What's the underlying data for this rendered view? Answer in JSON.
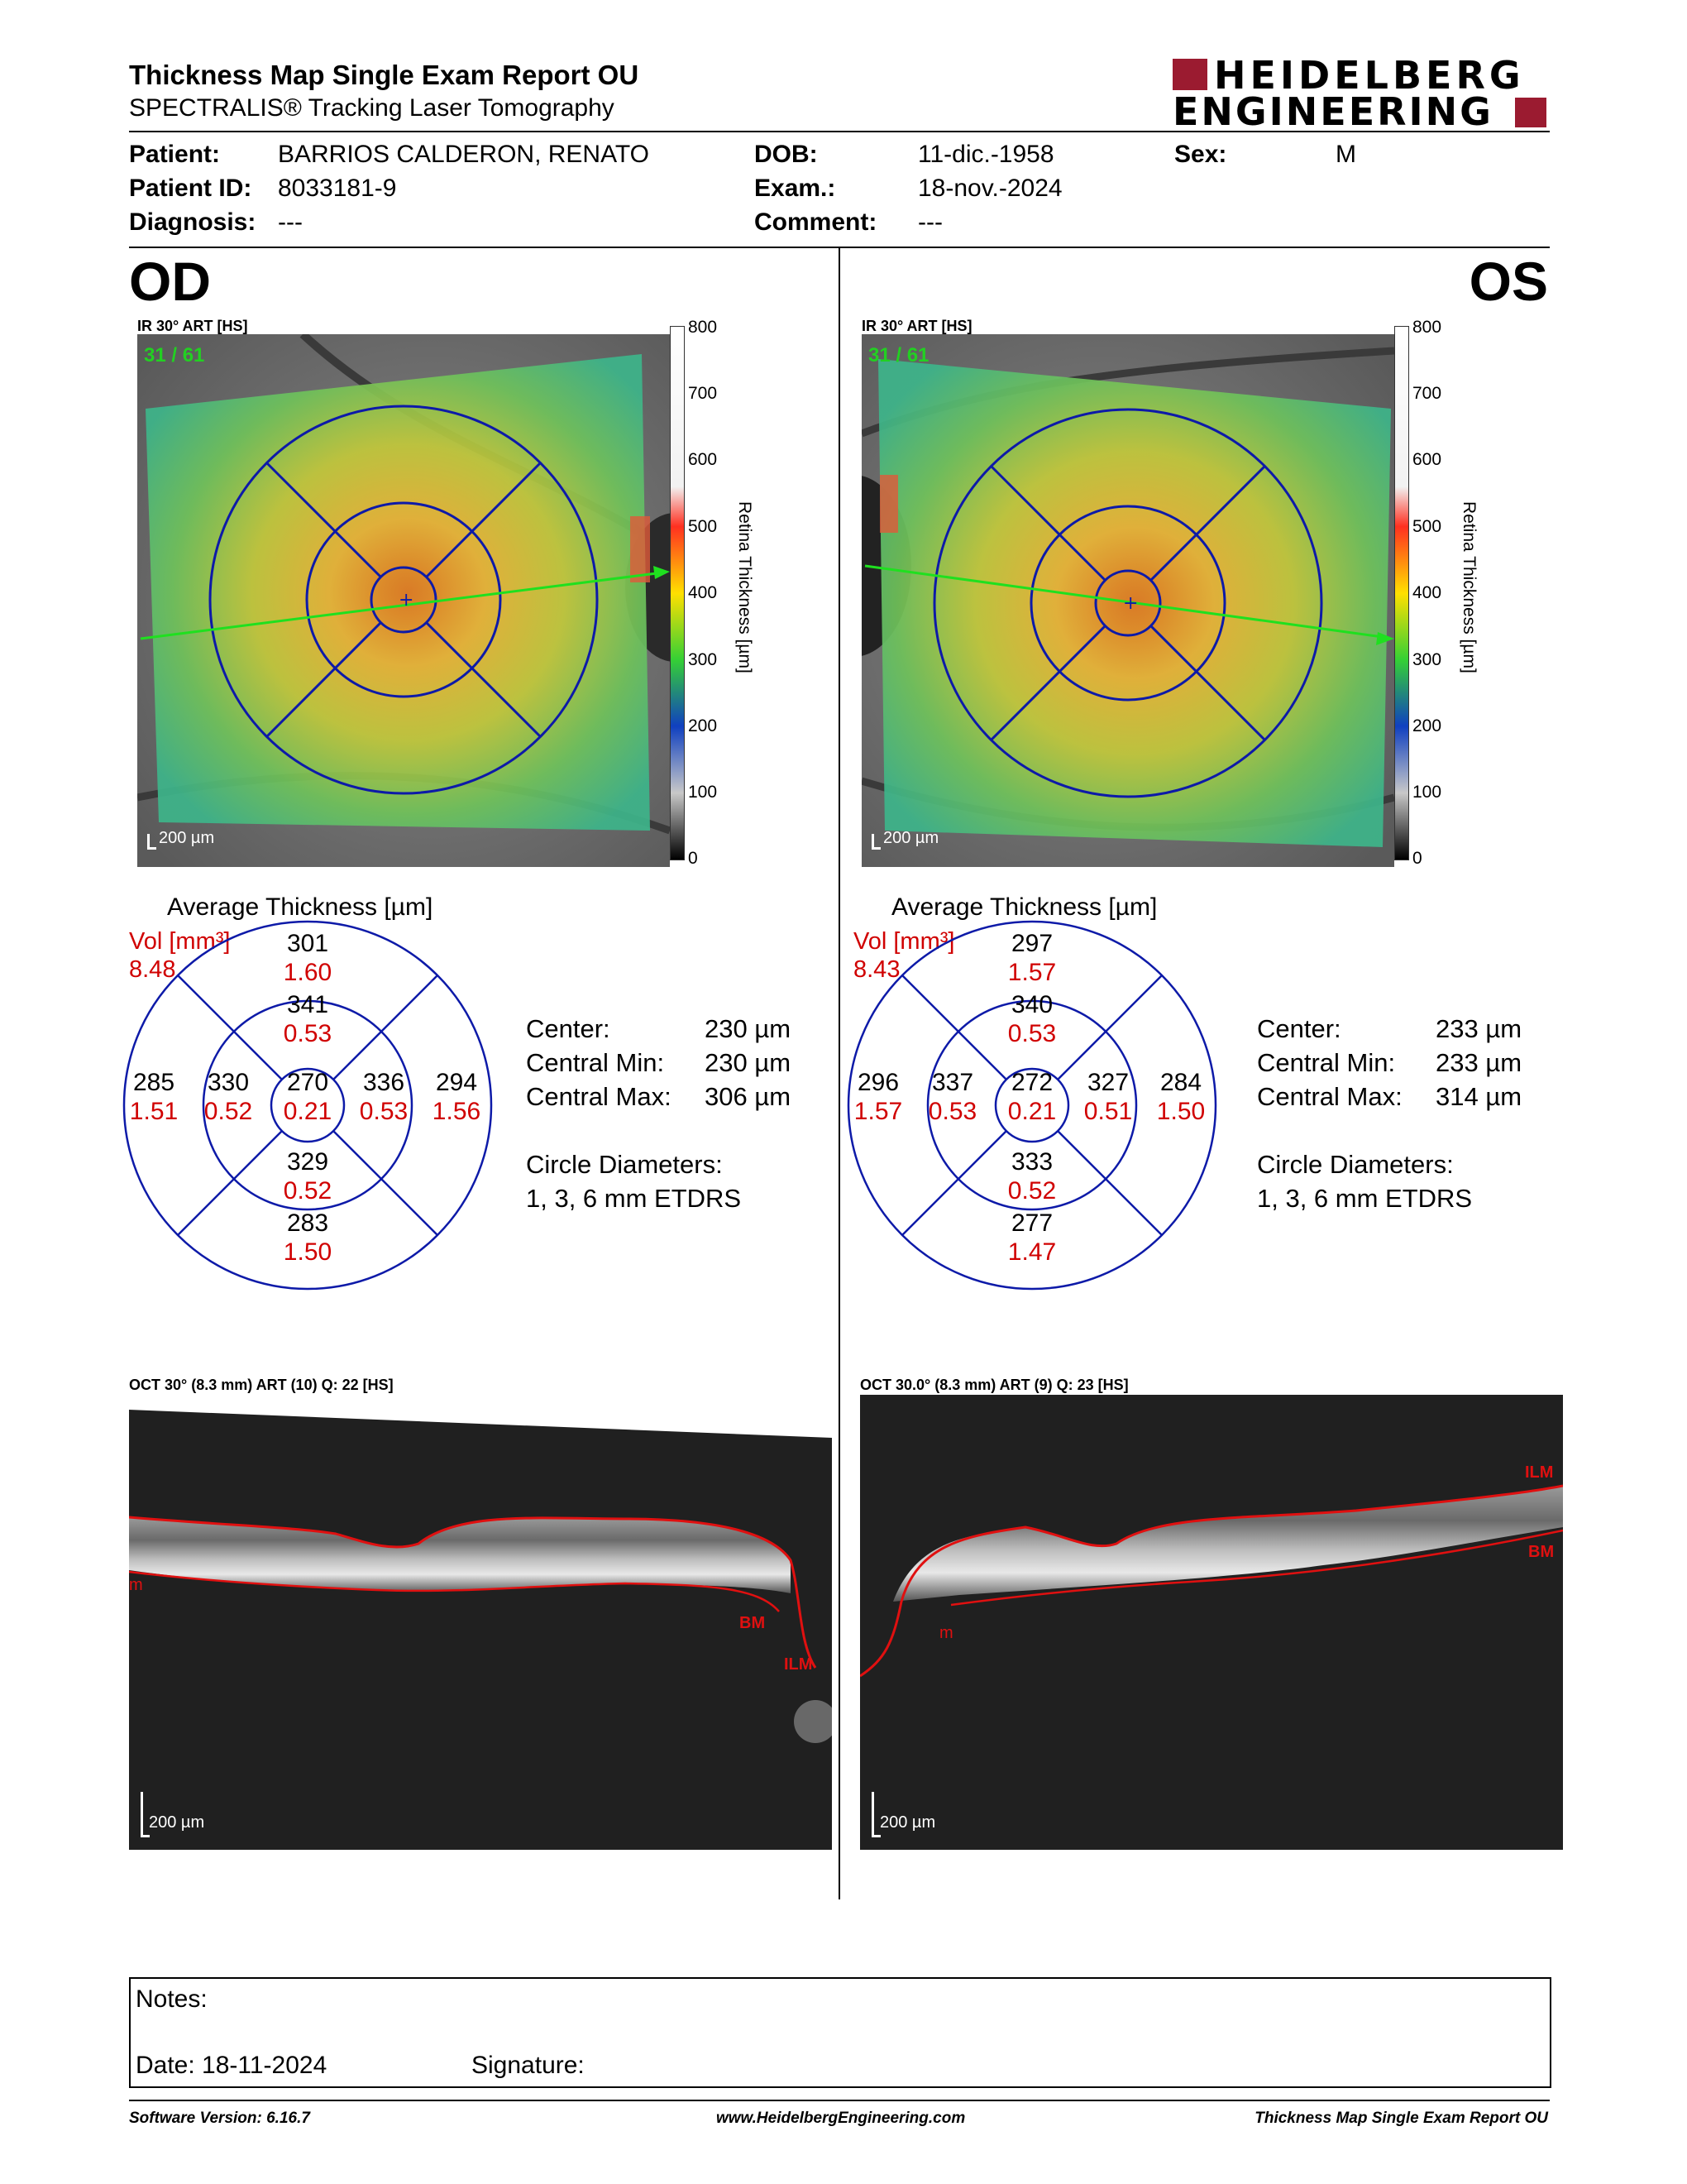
{
  "header": {
    "title": "Thickness Map Single Exam Report OU",
    "subtitle": "SPECTRALIS® Tracking Laser Tomography",
    "logo_line1": "HEIDELBERG",
    "logo_line2": "ENGINEERING",
    "logo_color": "#9b1b30"
  },
  "patient": {
    "patient_label": "Patient:",
    "patient_value": "BARRIOS CALDERON, RENATO",
    "id_label": "Patient ID:",
    "id_value": "8033181-9",
    "diagnosis_label": "Diagnosis:",
    "diagnosis_value": "---",
    "dob_label": "DOB:",
    "dob_value": "11-dic.-1958",
    "exam_label": "Exam.:",
    "exam_value": "18-nov.-2024",
    "comment_label": "Comment:",
    "comment_value": "---",
    "sex_label": "Sex:",
    "sex_value": "M"
  },
  "od": {
    "eye": "OD",
    "ir_label": "IR 30° ART [HS]",
    "frame": "31 / 61",
    "scale": "200 µm",
    "avg_title": "Average Thickness [µm]",
    "vol_label": "Vol [mm³]",
    "vol_value": "8.48",
    "sectors": {
      "outer_sup": {
        "t": "301",
        "v": "1.60"
      },
      "inner_sup": {
        "t": "341",
        "v": "0.53"
      },
      "outer_left": {
        "t": "285",
        "v": "1.51"
      },
      "inner_left": {
        "t": "330",
        "v": "0.52"
      },
      "center": {
        "t": "270",
        "v": "0.21"
      },
      "inner_right": {
        "t": "336",
        "v": "0.53"
      },
      "outer_right": {
        "t": "294",
        "v": "1.56"
      },
      "inner_inf": {
        "t": "329",
        "v": "0.52"
      },
      "outer_inf": {
        "t": "283",
        "v": "1.50"
      }
    },
    "stats": {
      "center_label": "Center:",
      "center_value": "230 µm",
      "min_label": "Central Min:",
      "min_value": "230 µm",
      "max_label": "Central Max:",
      "max_value": "306 µm",
      "diam_label": "Circle Diameters:",
      "diam_value": "1, 3, 6 mm ETDRS"
    },
    "oct_label": "OCT 30° (8.3 mm) ART (10) Q: 22 [HS]",
    "oct_scale": "200 µm",
    "layer_ilm": "ILM",
    "layer_bm": "BM",
    "layer_m": "m"
  },
  "os": {
    "eye": "OS",
    "ir_label": "IR 30° ART [HS]",
    "frame": "31 / 61",
    "scale": "200 µm",
    "avg_title": "Average Thickness [µm]",
    "vol_label": "Vol [mm³]",
    "vol_value": "8.43",
    "sectors": {
      "outer_sup": {
        "t": "297",
        "v": "1.57"
      },
      "inner_sup": {
        "t": "340",
        "v": "0.53"
      },
      "outer_left": {
        "t": "296",
        "v": "1.57"
      },
      "inner_left": {
        "t": "337",
        "v": "0.53"
      },
      "center": {
        "t": "272",
        "v": "0.21"
      },
      "inner_right": {
        "t": "327",
        "v": "0.51"
      },
      "outer_right": {
        "t": "284",
        "v": "1.50"
      },
      "inner_inf": {
        "t": "333",
        "v": "0.52"
      },
      "outer_inf": {
        "t": "277",
        "v": "1.47"
      }
    },
    "stats": {
      "center_label": "Center:",
      "center_value": "233 µm",
      "min_label": "Central Min:",
      "min_value": "233 µm",
      "max_label": "Central Max:",
      "max_value": "314 µm",
      "diam_label": "Circle Diameters:",
      "diam_value": "1, 3, 6 mm ETDRS"
    },
    "oct_label": "OCT 30.0° (8.3 mm) ART (9) Q: 23 [HS]",
    "oct_scale": "200 µm",
    "layer_ilm": "ILM",
    "layer_bm": "BM",
    "layer_m": "m"
  },
  "colorbar": {
    "title": "Retina Thickness [µm]",
    "ticks": [
      "800",
      "700",
      "600",
      "500",
      "400",
      "300",
      "200",
      "100",
      "0"
    ]
  },
  "notes": {
    "notes_label": "Notes:",
    "date_label": "Date: 18-11-2024",
    "signature_label": "Signature:"
  },
  "footer": {
    "left": "Software Version: 6.16.7",
    "center": "www.HeidelbergEngineering.com",
    "right": "Thickness Map Single Exam Report OU"
  }
}
